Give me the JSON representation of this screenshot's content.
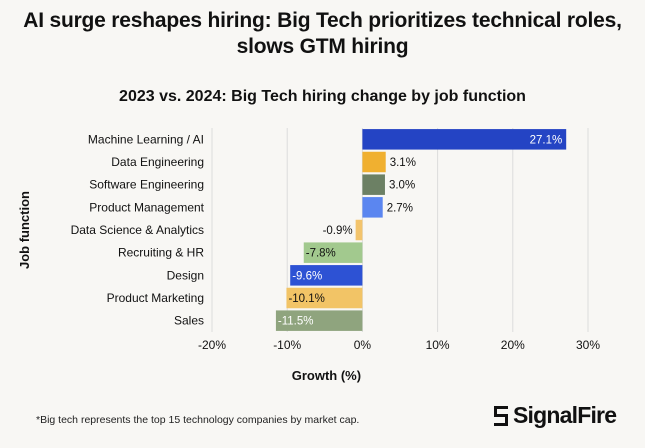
{
  "headline": "AI surge reshapes hiring: Big Tech prioritizes technical roles, slows GTM hiring",
  "footnote": "*Big tech represents the top 15 technology companies by market cap.",
  "brand": {
    "name": "SignalFire"
  },
  "chart_data": {
    "type": "bar",
    "orientation": "horizontal",
    "title": "2023 vs. 2024: Big Tech hiring change by job function",
    "xlabel": "Growth (%)",
    "ylabel": "Job function",
    "xlim": [
      -20,
      30
    ],
    "xticks": [
      -20,
      -10,
      0,
      10,
      20,
      30
    ],
    "xtick_labels": [
      "-20%",
      "-10%",
      "0%",
      "10%",
      "20%",
      "30%"
    ],
    "grid": true,
    "categories": [
      "Machine Learning / AI",
      "Data Engineering",
      "Software Engineering",
      "Product Management",
      "Data Science & Analytics",
      "Recruiting & HR",
      "Design",
      "Product Marketing",
      "Sales"
    ],
    "values": [
      27.1,
      3.1,
      3.0,
      2.7,
      -0.9,
      -7.8,
      -9.6,
      -10.1,
      -11.5
    ],
    "labels": [
      "27.1%",
      "3.1%",
      "3.0%",
      "2.7%",
      "-0.9%",
      "-7.8%",
      "-9.6%",
      "-10.1%",
      "-11.5%"
    ],
    "colors": [
      "#2444c4",
      "#f0b030",
      "#6c8064",
      "#5b86f0",
      "#f3c46c",
      "#a2c98e",
      "#2d52d4",
      "#f2c466",
      "#8fa47e"
    ],
    "label_colors": [
      "#ffffff",
      "#111111",
      "#111111",
      "#111111",
      "#111111",
      "#111111",
      "#ffffff",
      "#111111",
      "#ffffff"
    ]
  }
}
